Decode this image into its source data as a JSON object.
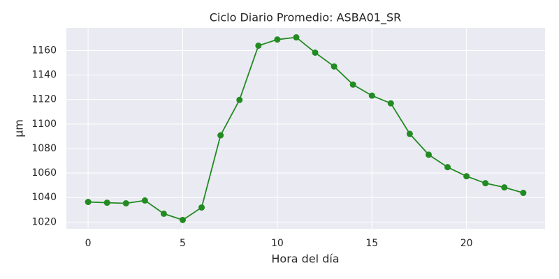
{
  "chart_data": {
    "type": "line",
    "title": "Ciclo Diario Promedio: ASBA01_SR",
    "x_label": "Hora del día",
    "y_label": "µm",
    "x": [
      0,
      1,
      2,
      3,
      4,
      5,
      6,
      7,
      8,
      9,
      10,
      11,
      12,
      13,
      14,
      15,
      16,
      17,
      18,
      19,
      20,
      21,
      22,
      23
    ],
    "series": [
      {
        "color": "#228b22",
        "values": [
          1036.4,
          1035.8,
          1035.3,
          1037.6,
          1026.8,
          1021.7,
          1031.9,
          1090.8,
          1119.7,
          1164,
          1169,
          1170.8,
          1158.3,
          1147,
          1132.2,
          1123.2,
          1116.9,
          1092,
          1075,
          1064.8,
          1057.4,
          1051.7,
          1048.3,
          1043.8
        ]
      }
    ],
    "xlim": [
      -1.15,
      24.15
    ],
    "xticks": [
      0,
      5,
      10,
      15,
      20
    ],
    "ylim": [
      1014.5,
      1178.5
    ],
    "yticks": [
      1020,
      1040,
      1060,
      1080,
      1100,
      1120,
      1140,
      1160
    ],
    "grid": true
  }
}
